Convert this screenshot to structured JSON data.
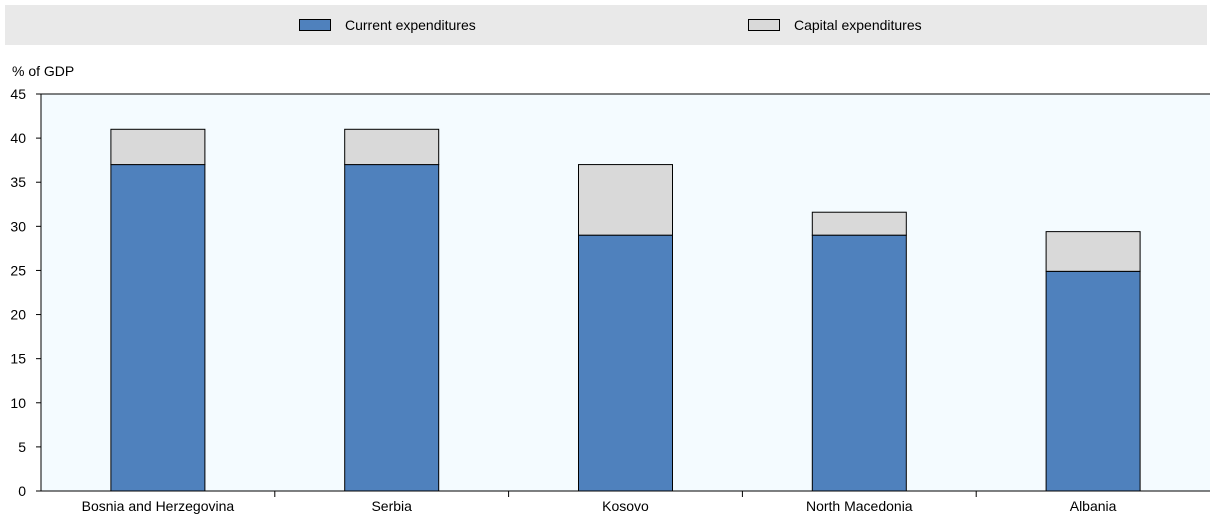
{
  "chart_data": {
    "type": "bar",
    "stacked": true,
    "ylabel": "% of GDP",
    "ylim": [
      0,
      45
    ],
    "yticks": [
      0,
      5,
      10,
      15,
      20,
      25,
      30,
      35,
      40,
      45
    ],
    "legend_position": "top",
    "grid": false,
    "categories": [
      "Bosnia and Herzegovina",
      "Serbia",
      "Kosovo",
      "North Macedonia",
      "Albania"
    ],
    "series": [
      {
        "name": "Current expenditures",
        "color": "#4f81bd",
        "values": [
          37,
          37,
          29,
          29,
          24.9
        ]
      },
      {
        "name": "Capital expenditures",
        "color": "#d9d9d9",
        "values": [
          4,
          4,
          8,
          2.6,
          4.5
        ]
      }
    ]
  }
}
